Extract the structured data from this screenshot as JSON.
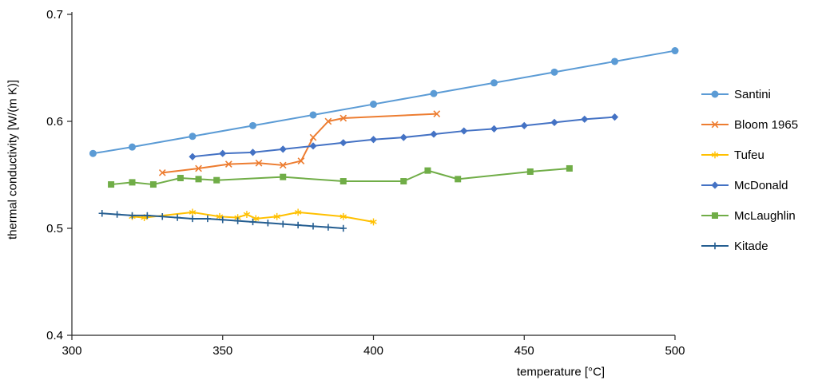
{
  "chart_data": {
    "type": "line",
    "title": "",
    "xlabel": "temperature [°C]",
    "ylabel": "thermal conductivity [W/(m K)]",
    "xlim": [
      300,
      500
    ],
    "ylim": [
      0.4,
      0.7
    ],
    "xticks": [
      300,
      350,
      400,
      450,
      500
    ],
    "yticks": [
      0.4,
      0.5,
      0.6,
      0.7
    ],
    "grid": false,
    "legend_position": "right",
    "series": [
      {
        "name": "Santini",
        "color": "#5B9BD5",
        "marker": "circle",
        "points": [
          [
            307,
            0.57
          ],
          [
            320,
            0.576
          ],
          [
            340,
            0.586
          ],
          [
            360,
            0.596
          ],
          [
            380,
            0.606
          ],
          [
            400,
            0.616
          ],
          [
            420,
            0.626
          ],
          [
            440,
            0.636
          ],
          [
            460,
            0.646
          ],
          [
            480,
            0.656
          ],
          [
            500,
            0.666
          ]
        ]
      },
      {
        "name": "Bloom 1965",
        "color": "#ED7D31",
        "marker": "x",
        "points": [
          [
            330,
            0.552
          ],
          [
            342,
            0.556
          ],
          [
            352,
            0.56
          ],
          [
            362,
            0.561
          ],
          [
            370,
            0.559
          ],
          [
            376,
            0.563
          ],
          [
            380,
            0.585
          ],
          [
            385,
            0.6
          ],
          [
            390,
            0.603
          ],
          [
            421,
            0.607
          ]
        ]
      },
      {
        "name": "Tufeu",
        "color": "#FFC000",
        "marker": "asterisk",
        "points": [
          [
            320,
            0.511
          ],
          [
            324,
            0.51
          ],
          [
            340,
            0.515
          ],
          [
            349,
            0.511
          ],
          [
            355,
            0.51
          ],
          [
            358,
            0.513
          ],
          [
            361,
            0.509
          ],
          [
            368,
            0.511
          ],
          [
            375,
            0.515
          ],
          [
            390,
            0.511
          ],
          [
            400,
            0.506
          ]
        ]
      },
      {
        "name": "McDonald",
        "color": "#4472C4",
        "marker": "diamond",
        "points": [
          [
            340,
            0.567
          ],
          [
            350,
            0.57
          ],
          [
            360,
            0.571
          ],
          [
            370,
            0.574
          ],
          [
            380,
            0.577
          ],
          [
            390,
            0.58
          ],
          [
            400,
            0.583
          ],
          [
            410,
            0.585
          ],
          [
            420,
            0.588
          ],
          [
            430,
            0.591
          ],
          [
            440,
            0.593
          ],
          [
            450,
            0.596
          ],
          [
            460,
            0.599
          ],
          [
            470,
            0.602
          ],
          [
            480,
            0.604
          ]
        ]
      },
      {
        "name": "McLaughlin",
        "color": "#70AD47",
        "marker": "square",
        "points": [
          [
            313,
            0.541
          ],
          [
            320,
            0.543
          ],
          [
            327,
            0.541
          ],
          [
            336,
            0.547
          ],
          [
            342,
            0.546
          ],
          [
            348,
            0.545
          ],
          [
            370,
            0.548
          ],
          [
            390,
            0.544
          ],
          [
            410,
            0.544
          ],
          [
            418,
            0.554
          ],
          [
            428,
            0.546
          ],
          [
            452,
            0.553
          ],
          [
            465,
            0.556
          ]
        ]
      },
      {
        "name": "Kitade",
        "color": "#255E91",
        "marker": "plus",
        "points": [
          [
            310,
            0.514
          ],
          [
            315,
            0.513
          ],
          [
            320,
            0.512
          ],
          [
            325,
            0.512
          ],
          [
            330,
            0.511
          ],
          [
            335,
            0.51
          ],
          [
            340,
            0.509
          ],
          [
            345,
            0.509
          ],
          [
            350,
            0.508
          ],
          [
            355,
            0.507
          ],
          [
            360,
            0.506
          ],
          [
            365,
            0.505
          ],
          [
            370,
            0.504
          ],
          [
            375,
            0.503
          ],
          [
            380,
            0.502
          ],
          [
            385,
            0.501
          ],
          [
            390,
            0.5
          ]
        ]
      }
    ]
  }
}
